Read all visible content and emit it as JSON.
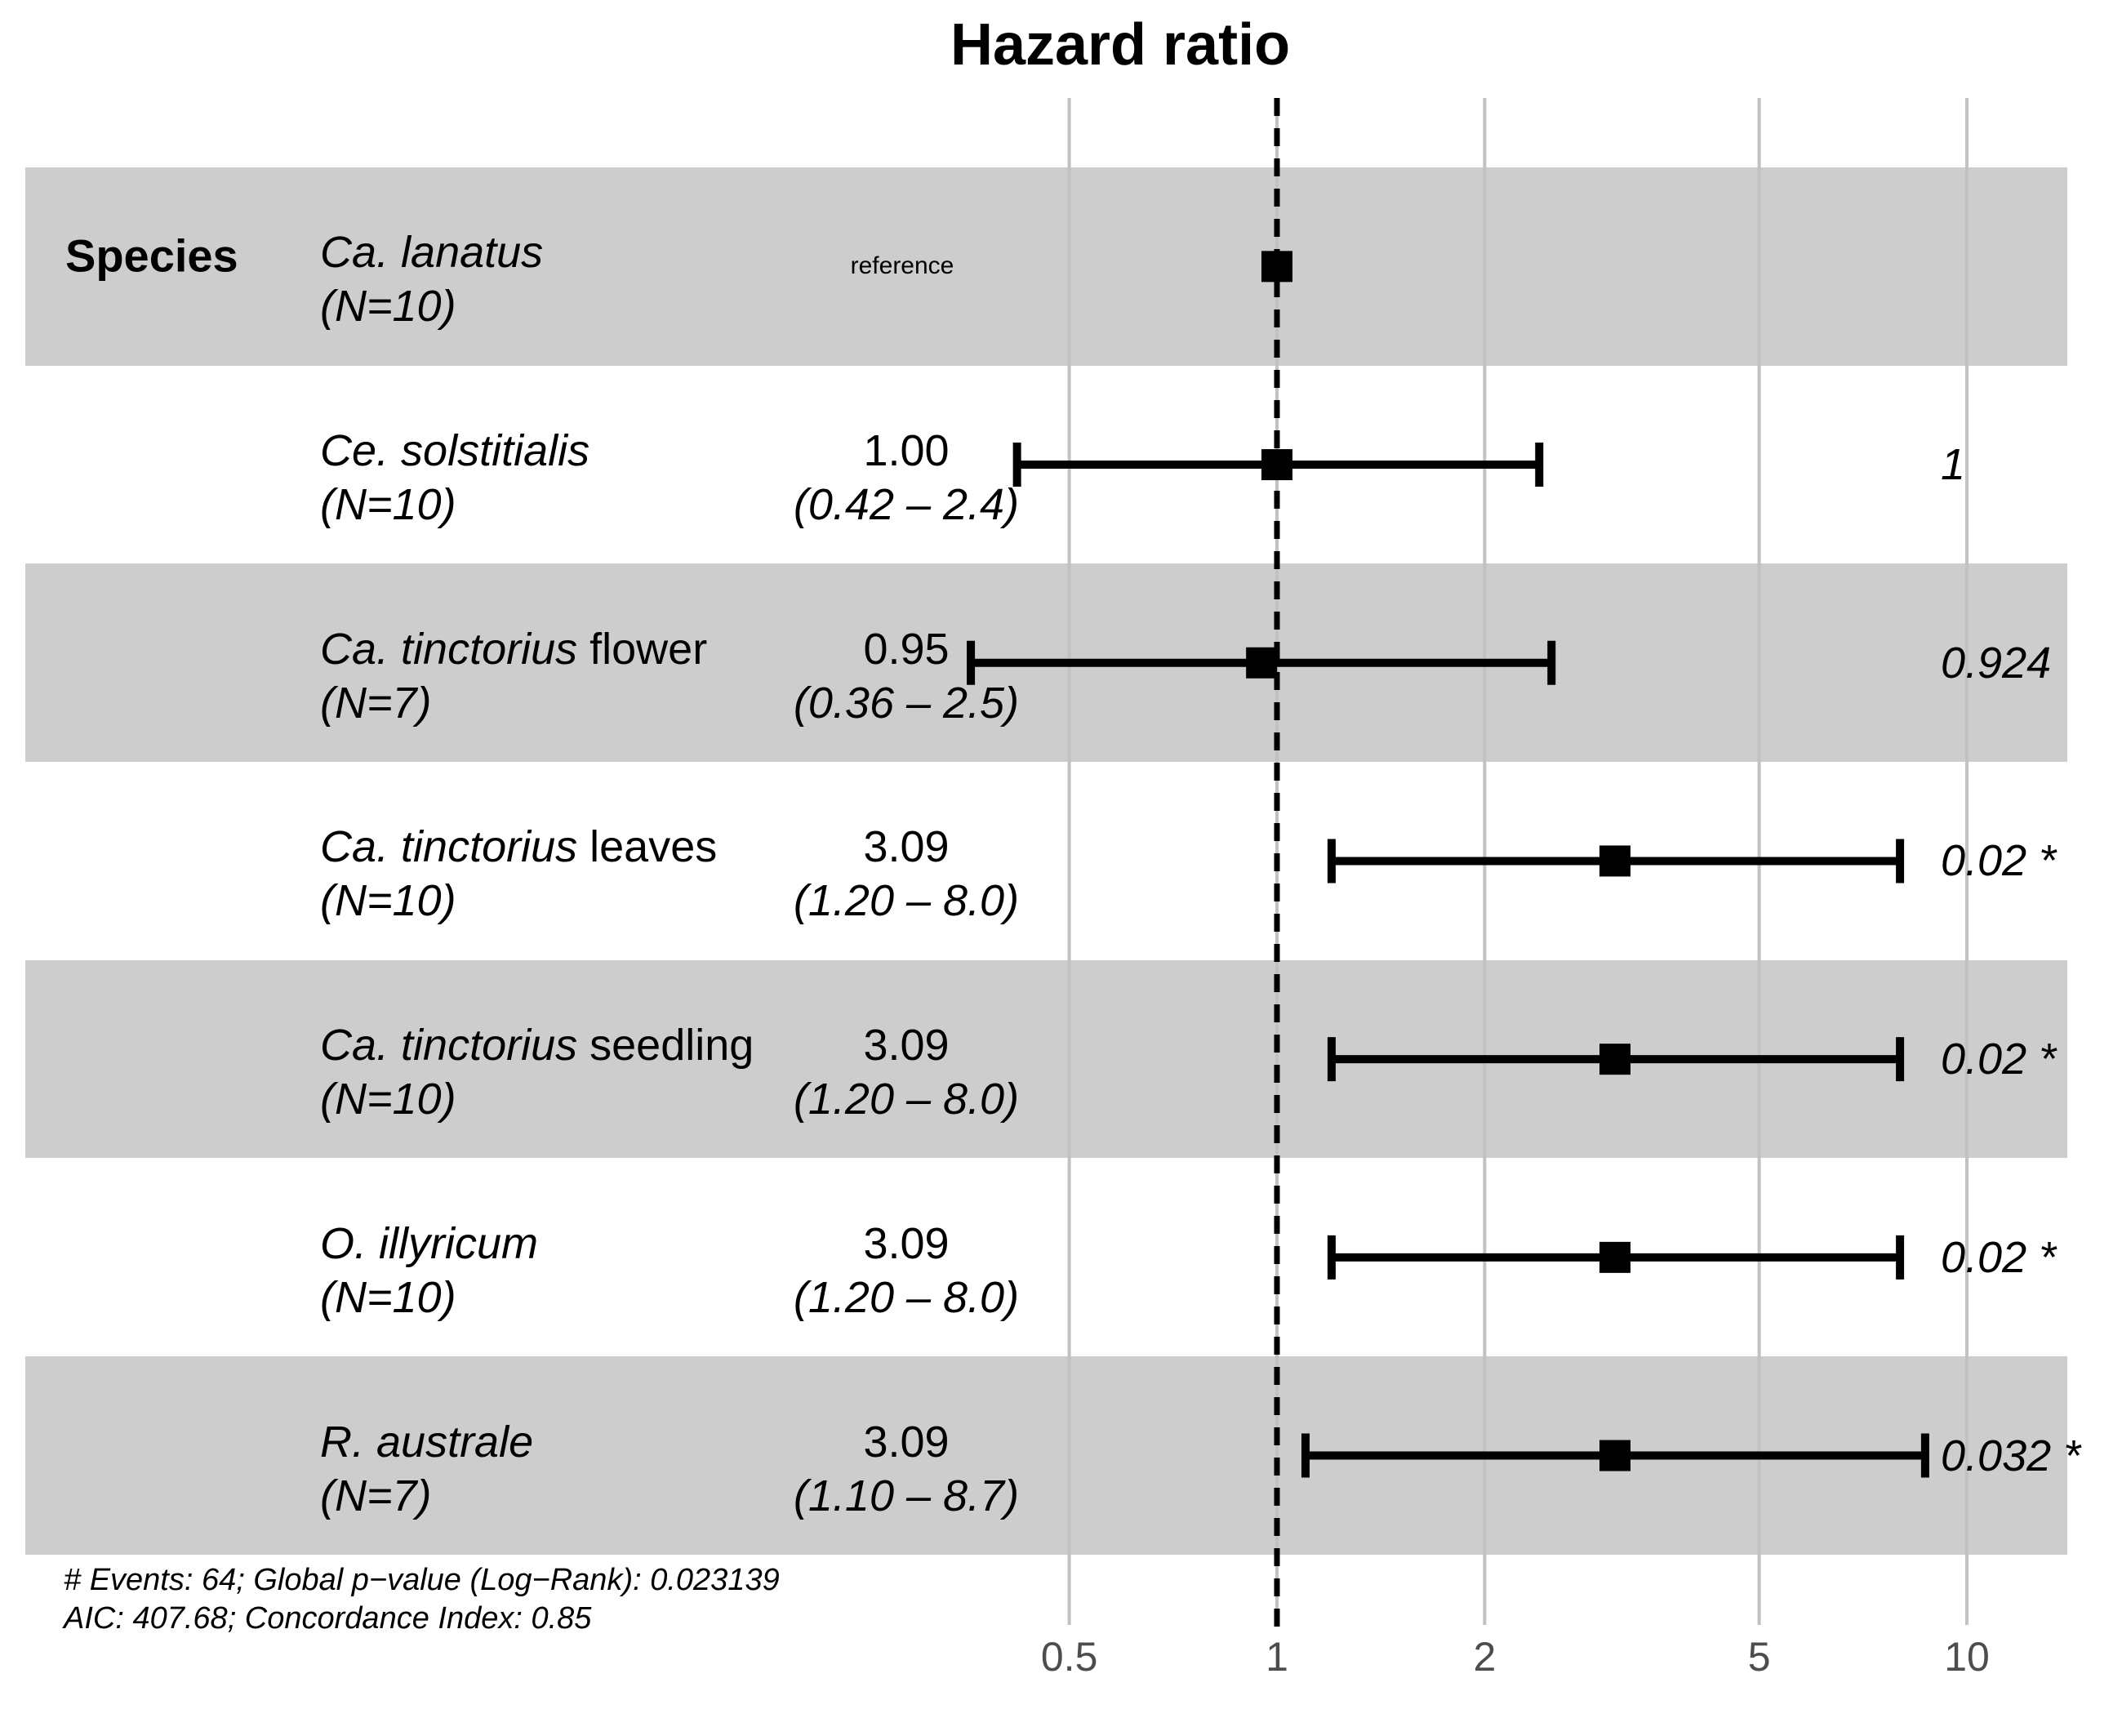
{
  "title": "Hazard ratio",
  "header_label": "Species",
  "colors": {
    "band": "#cdcdcd",
    "gridline": "#c2c2c2",
    "reference_line": "#000000",
    "marker": "#000000",
    "tick_text": "#4d4d4d"
  },
  "footer": {
    "line1": "# Events: 64; Global p−value (Log−Rank): 0.023139",
    "line2": "AIC: 407.68; Concordance Index: 0.85"
  },
  "chart_data": {
    "type": "forest",
    "title": "Hazard ratio",
    "x_axis": {
      "scale": "log10",
      "ticks": [
        0.5,
        1,
        2,
        5,
        10
      ],
      "tick_labels": [
        "0.5",
        "1",
        "2",
        "5",
        "10"
      ],
      "reference_line": 1,
      "range": [
        0.33,
        13
      ]
    },
    "group_label": "Species",
    "rows": [
      {
        "species_italic": "Ca. lanatus",
        "species_plain": "",
        "n_label": "(N=10)",
        "estimate_label": "reference",
        "is_reference": true,
        "hr": 1,
        "ci_low": null,
        "ci_high": null,
        "estimate_text": "",
        "ci_text": "",
        "p_text": "",
        "shaded": true
      },
      {
        "species_italic": "Ce. solstitialis",
        "species_plain": "",
        "n_label": "(N=10)",
        "estimate_label": "",
        "is_reference": false,
        "hr": 1.0,
        "ci_low": 0.42,
        "ci_high": 2.4,
        "estimate_text": "1.00",
        "ci_text": "(0.42 – 2.4)",
        "p_text": "1",
        "shaded": false
      },
      {
        "species_italic": "Ca. tinctorius",
        "species_plain": " flower",
        "n_label": "(N=7)",
        "estimate_label": "",
        "is_reference": false,
        "hr": 0.95,
        "ci_low": 0.36,
        "ci_high": 2.5,
        "estimate_text": "0.95",
        "ci_text": "(0.36 – 2.5)",
        "p_text": "0.924",
        "shaded": true
      },
      {
        "species_italic": "Ca. tinctorius",
        "species_plain": " leaves",
        "n_label": "(N=10)",
        "estimate_label": "",
        "is_reference": false,
        "hr": 3.09,
        "ci_low": 1.2,
        "ci_high": 8.0,
        "estimate_text": "3.09",
        "ci_text": "(1.20 – 8.0)",
        "p_text": "0.02 *",
        "shaded": false
      },
      {
        "species_italic": "Ca. tinctorius",
        "species_plain": " seedling",
        "n_label": "(N=10)",
        "estimate_label": "",
        "is_reference": false,
        "hr": 3.09,
        "ci_low": 1.2,
        "ci_high": 8.0,
        "estimate_text": "3.09",
        "ci_text": "(1.20 – 8.0)",
        "p_text": "0.02 *",
        "shaded": true
      },
      {
        "species_italic": "O. illyricum",
        "species_plain": "",
        "n_label": "(N=10)",
        "estimate_label": "",
        "is_reference": false,
        "hr": 3.09,
        "ci_low": 1.2,
        "ci_high": 8.0,
        "estimate_text": "3.09",
        "ci_text": "(1.20 – 8.0)",
        "p_text": "0.02 *",
        "shaded": false
      },
      {
        "species_italic": "R. australe",
        "species_plain": "",
        "n_label": "(N=7)",
        "estimate_label": "",
        "is_reference": false,
        "hr": 3.09,
        "ci_low": 1.1,
        "ci_high": 8.7,
        "estimate_text": "3.09",
        "ci_text": "(1.10 – 8.7)",
        "p_text": "0.032 *",
        "shaded": true
      }
    ],
    "annotations": [
      "# Events: 64; Global p−value (Log−Rank): 0.023139",
      "AIC: 407.68; Concordance Index: 0.85"
    ]
  }
}
